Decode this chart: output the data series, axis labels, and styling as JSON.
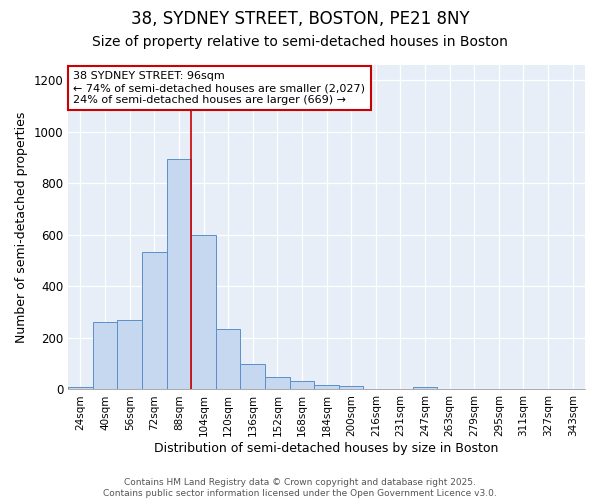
{
  "title1": "38, SYDNEY STREET, BOSTON, PE21 8NY",
  "title2": "Size of property relative to semi-detached houses in Boston",
  "xlabel": "Distribution of semi-detached houses by size in Boston",
  "ylabel": "Number of semi-detached properties",
  "categories": [
    "24sqm",
    "40sqm",
    "56sqm",
    "72sqm",
    "88sqm",
    "104sqm",
    "120sqm",
    "136sqm",
    "152sqm",
    "168sqm",
    "184sqm",
    "200sqm",
    "216sqm",
    "231sqm",
    "247sqm",
    "263sqm",
    "279sqm",
    "295sqm",
    "311sqm",
    "327sqm",
    "343sqm"
  ],
  "values": [
    10,
    263,
    270,
    535,
    895,
    600,
    235,
    100,
    48,
    33,
    18,
    15,
    0,
    0,
    8,
    0,
    0,
    0,
    0,
    0,
    0
  ],
  "bar_color": "#c5d8f0",
  "bar_edge_color": "#5b8fc9",
  "vline_color": "#cc0000",
  "vline_x": 4.5,
  "annotation_text": "38 SYDNEY STREET: 96sqm\n← 74% of semi-detached houses are smaller (2,027)\n24% of semi-detached houses are larger (669) →",
  "annotation_box_color": "#ffffff",
  "annotation_box_edge": "#cc0000",
  "ylim": [
    0,
    1260
  ],
  "yticks": [
    0,
    200,
    400,
    600,
    800,
    1000,
    1200
  ],
  "footer_text": "Contains HM Land Registry data © Crown copyright and database right 2025.\nContains public sector information licensed under the Open Government Licence v3.0.",
  "bg_color": "#ffffff",
  "plot_bg_color": "#ffffff",
  "grid_color": "#d0ddf0",
  "title1_fontsize": 12,
  "title2_fontsize": 10
}
